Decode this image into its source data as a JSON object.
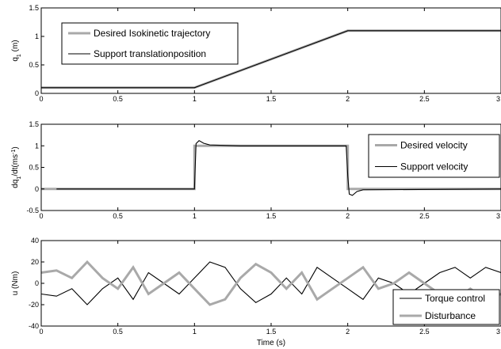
{
  "chart_data": [
    {
      "type": "line",
      "ylabel_main": "q",
      "ylabel_sub": "1",
      "ylabel_rest": " (m)",
      "xlim": [
        0,
        3
      ],
      "ylim": [
        0,
        1.5
      ],
      "xticks": [
        "0",
        "0.5",
        "1",
        "1.5",
        "2",
        "2.5",
        "3"
      ],
      "yticks": [
        "0",
        "0.5",
        "1",
        "1.5"
      ],
      "legend_placement": "top-left",
      "series": [
        {
          "name": "Desired Isokinetic trajectory",
          "color": "#a9a9a9",
          "x": [
            0,
            1,
            2,
            3
          ],
          "y": [
            0.1,
            0.1,
            1.1,
            1.1
          ]
        },
        {
          "name": "Support translationposition",
          "color": "#000000",
          "x": [
            0,
            1,
            2,
            3
          ],
          "y": [
            0.1,
            0.1,
            1.1,
            1.1
          ]
        }
      ]
    },
    {
      "type": "line",
      "ylabel_main": "dq",
      "ylabel_sub": "1",
      "ylabel_rest": "/dt(ms",
      "ylabel_sup": "-1",
      "ylabel_end": ")",
      "xlim": [
        0,
        3
      ],
      "ylim": [
        -0.5,
        1.5
      ],
      "xticks": [
        "0",
        "0.5",
        "1",
        "1.5",
        "2",
        "2.5",
        "3"
      ],
      "yticks": [
        "-0.5",
        "0",
        "0.5",
        "1",
        "1.5"
      ],
      "legend_placement": "top-right",
      "series": [
        {
          "name": "Desired velocity",
          "color": "#a9a9a9",
          "x": [
            0,
            1,
            1,
            2,
            2,
            3
          ],
          "y": [
            0,
            0,
            1,
            1,
            0,
            0
          ]
        },
        {
          "name": "Support velocity",
          "color": "#000000",
          "x": [
            0.1,
            1,
            1.01,
            1.03,
            1.06,
            1.1,
            1.3,
            1.5,
            1.7,
            1.9,
            1.99,
            2.0,
            2.01,
            2.03,
            2.06,
            2.1,
            3
          ],
          "y": [
            0,
            0,
            1.05,
            1.12,
            1.06,
            1.02,
            1.0,
            1.0,
            1.0,
            1.0,
            1.0,
            0.3,
            -0.12,
            -0.15,
            -0.06,
            -0.02,
            0
          ]
        }
      ]
    },
    {
      "type": "line",
      "ylabel": "u (Nm)",
      "xlabel": "Time (s)",
      "xlim": [
        0,
        3
      ],
      "ylim": [
        -40,
        40
      ],
      "xticks": [
        "0",
        "0.5",
        "1",
        "1.5",
        "2",
        "2.5",
        "3"
      ],
      "yticks": [
        "-40",
        "-20",
        "0",
        "20",
        "40"
      ],
      "legend_placement": "bottom-right",
      "series": [
        {
          "name": "Torque control",
          "color": "#000000",
          "x": [
            0,
            0.1,
            0.2,
            0.3,
            0.4,
            0.5,
            0.6,
            0.7,
            0.8,
            0.9,
            1.0,
            1.1,
            1.2,
            1.3,
            1.4,
            1.5,
            1.6,
            1.7,
            1.8,
            1.9,
            2.0,
            2.1,
            2.2,
            2.3,
            2.4,
            2.5,
            2.6,
            2.7,
            2.8,
            2.9,
            3.0
          ],
          "y": [
            -10,
            -12,
            -5,
            -20,
            -5,
            5,
            -15,
            10,
            0,
            -10,
            5,
            20,
            15,
            -5,
            -18,
            -10,
            5,
            -10,
            15,
            5,
            -5,
            -15,
            5,
            0,
            -10,
            0,
            10,
            15,
            5,
            15,
            10
          ]
        },
        {
          "name": "Disturbance",
          "color": "#a9a9a9",
          "x": [
            0,
            0.1,
            0.2,
            0.3,
            0.4,
            0.5,
            0.6,
            0.7,
            0.8,
            0.9,
            1.0,
            1.1,
            1.2,
            1.3,
            1.4,
            1.5,
            1.6,
            1.7,
            1.8,
            1.9,
            2.0,
            2.1,
            2.2,
            2.3,
            2.4,
            2.5,
            2.6,
            2.7,
            2.8,
            2.9,
            3.0
          ],
          "y": [
            10,
            12,
            5,
            20,
            5,
            -5,
            15,
            -10,
            0,
            10,
            -5,
            -20,
            -15,
            5,
            18,
            10,
            -5,
            10,
            -15,
            -5,
            5,
            15,
            -5,
            0,
            10,
            0,
            -10,
            -15,
            -5,
            -15,
            -10
          ]
        }
      ]
    }
  ]
}
